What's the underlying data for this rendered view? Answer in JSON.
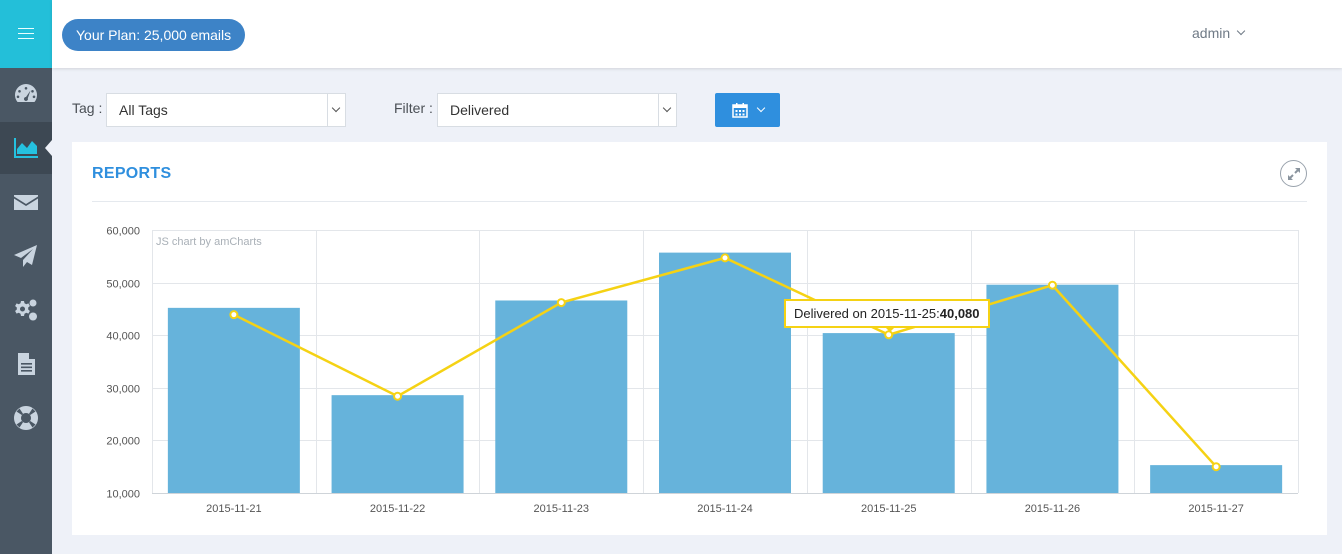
{
  "sidebar": {
    "items": [
      {
        "icon": "dashboard-icon"
      },
      {
        "icon": "reports-chart-icon",
        "active": true
      },
      {
        "icon": "envelope-icon"
      },
      {
        "icon": "paper-plane-icon"
      },
      {
        "icon": "gears-icon"
      },
      {
        "icon": "document-icon"
      },
      {
        "icon": "lifebuoy-icon"
      }
    ]
  },
  "header": {
    "plan_label": "Your Plan: 25,000 emails",
    "user": "admin"
  },
  "filters": {
    "tag_label": "Tag :",
    "tag_value": "All Tags",
    "filter_label": "Filter :",
    "filter_value": "Delivered"
  },
  "panel": {
    "title": "REPORTS",
    "credit": "JS chart by amCharts"
  },
  "tooltip": {
    "prefix": "Delivered on 2015-11-25:",
    "value": "40,080"
  },
  "colors": {
    "bar": "#66b3db",
    "line": "#f5d214",
    "accent": "#2f8fde"
  },
  "chart_data": {
    "type": "bar",
    "categories": [
      "2015-11-21",
      "2015-11-22",
      "2015-11-23",
      "2015-11-24",
      "2015-11-25",
      "2015-11-26",
      "2015-11-27"
    ],
    "series": [
      {
        "kind": "bar",
        "values": [
          45200,
          28600,
          46600,
          55700,
          40400,
          49600,
          15300
        ]
      },
      {
        "kind": "line",
        "values": [
          43900,
          28400,
          46200,
          54700,
          40080,
          49500,
          15000
        ]
      }
    ],
    "yticks": [
      "60,000",
      "50,000",
      "40,000",
      "30,000",
      "20,000",
      "10,000"
    ],
    "ylim": [
      10000,
      60000
    ],
    "grid": true
  }
}
